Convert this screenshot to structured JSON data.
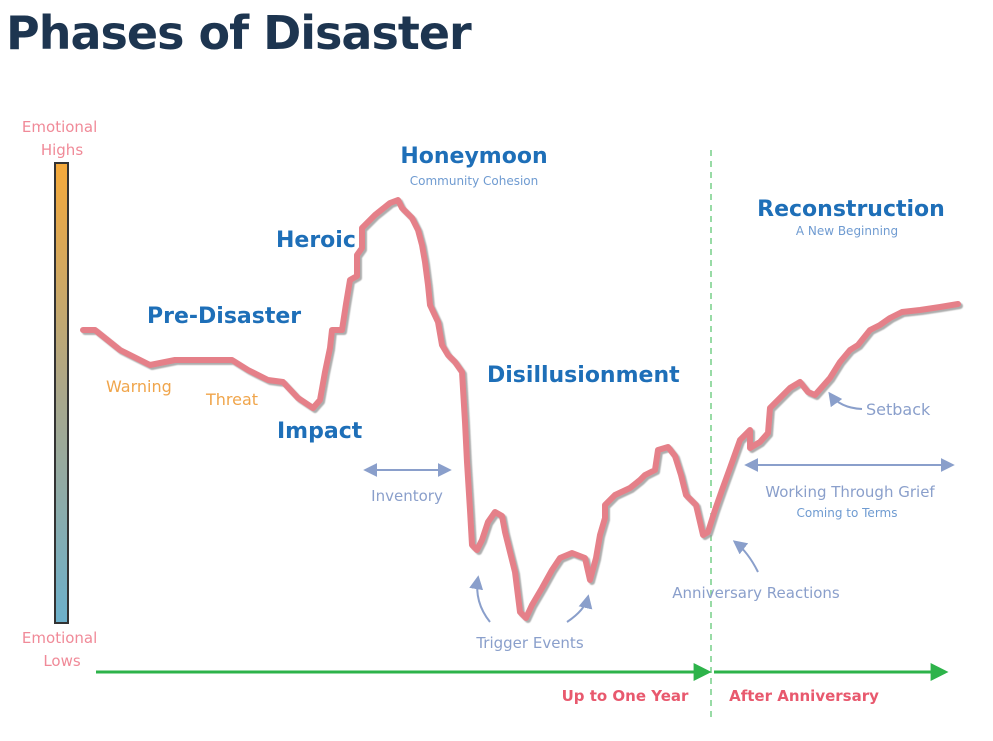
{
  "title": "Phases of Disaster",
  "scale": {
    "top_label": "Emotional\nHighs",
    "bottom_label": "Emotional\nLows"
  },
  "phases": {
    "pre_disaster": "Pre-Disaster",
    "heroic": "Heroic",
    "honeymoon": "Honeymoon",
    "honeymoon_sub": "Community Cohesion",
    "impact": "Impact",
    "disillusionment": "Disillusionment",
    "reconstruction": "Reconstruction",
    "reconstruction_sub": "A New Beginning"
  },
  "events": {
    "warning": "Warning",
    "threat": "Threat",
    "inventory": "Inventory",
    "trigger_events": "Trigger Events",
    "anniversary_reactions": "Anniversary Reactions",
    "setback": "Setback",
    "working_through_grief": "Working Through Grief",
    "coming_to_terms": "Coming to Terms"
  },
  "timeline": {
    "up_to_one_year": "Up to One Year",
    "after_anniversary": "After Anniversary"
  },
  "colors": {
    "title": "#1d3550",
    "curve": "#e58089",
    "phase_label": "#1e6fb8",
    "note_label": "#8a9fcb",
    "warning_label": "#f0a54b",
    "timeline_arrow": "#2db34a",
    "timeline_label": "#e8596e"
  }
}
